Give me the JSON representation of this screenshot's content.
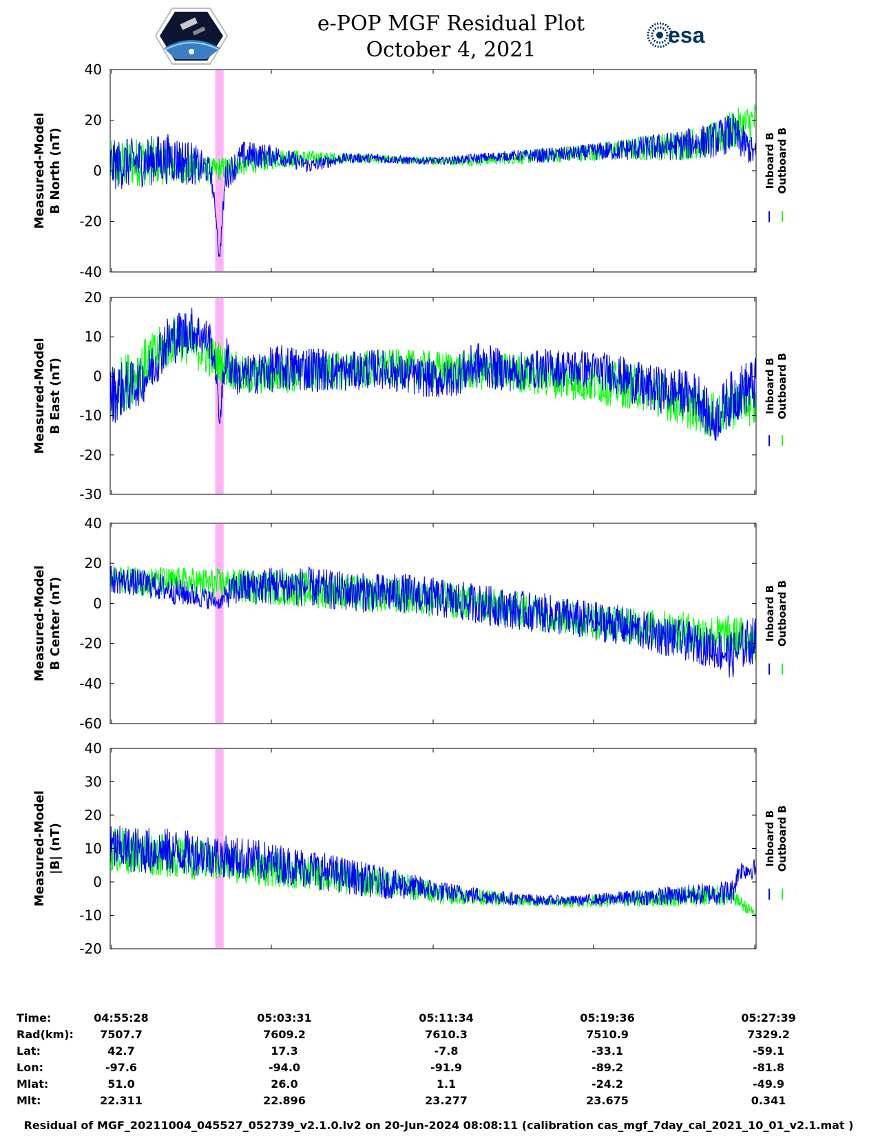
{
  "title": {
    "line1": "e-POP MGF Residual Plot",
    "line2": "October 4, 2021"
  },
  "logos": {
    "left_icon": "cassiope-mission-badge-icon",
    "right_icon": "esa-logo-icon",
    "right_text": "esa"
  },
  "colors": {
    "inboard": "#0000ff",
    "outboard": "#00ff00",
    "highlight": "#ffb3f5"
  },
  "legend": {
    "inboard": "Inboard B",
    "outboard": "Outboard B"
  },
  "chart_data": [
    {
      "type": "line",
      "ylabel_line1": "Measured-Model",
      "ylabel_line2": "B North (nT)",
      "ylim": [
        -40,
        40
      ],
      "yticks": [
        "40",
        "20",
        "0",
        "-20",
        "-40"
      ],
      "xlim_seconds": [
        0,
        1931
      ],
      "highlight_seconds": [
        314,
        339
      ],
      "series": [
        {
          "name": "Inboard B",
          "color": "#0000ff",
          "x": [
            0,
            60,
            120,
            180,
            240,
            300,
            318,
            326,
            345,
            400,
            500,
            600,
            700,
            800,
            900,
            1000,
            1100,
            1200,
            1300,
            1400,
            1500,
            1600,
            1700,
            1800,
            1860,
            1900,
            1931
          ],
          "y": [
            2,
            3,
            4,
            5,
            3,
            0,
            -20,
            -36,
            -2,
            6,
            6,
            2,
            5,
            5,
            4,
            4,
            5,
            6,
            6,
            7,
            8,
            9,
            10,
            12,
            15,
            10,
            6
          ],
          "spread": [
            10,
            10,
            10,
            10,
            9,
            5,
            2,
            2,
            6,
            6,
            4,
            3,
            2,
            2,
            1.5,
            1.5,
            2,
            2,
            3,
            3,
            4,
            5,
            6,
            7,
            8,
            7,
            5
          ]
        },
        {
          "name": "Outboard B",
          "color": "#00ff00",
          "x": [
            0,
            100,
            300,
            500,
            700,
            900,
            1100,
            1300,
            1500,
            1700,
            1800,
            1860,
            1900,
            1931
          ],
          "y": [
            2,
            4,
            0,
            5,
            5,
            4,
            4,
            6,
            8,
            10,
            12,
            16,
            18,
            20
          ],
          "spread": [
            10,
            10,
            5,
            4,
            2,
            1.5,
            2,
            3,
            4,
            6,
            7,
            8,
            8,
            8
          ]
        }
      ]
    },
    {
      "type": "line",
      "ylabel_line1": "Measured-Model",
      "ylabel_line2": "B East (nT)",
      "ylim": [
        -30,
        20
      ],
      "yticks": [
        "20",
        "10",
        "0",
        "-10",
        "-20",
        "-30"
      ],
      "xlim_seconds": [
        0,
        1931
      ],
      "highlight_seconds": [
        314,
        339
      ],
      "series": [
        {
          "name": "Inboard B",
          "color": "#0000ff",
          "x": [
            0,
            40,
            80,
            110,
            160,
            240,
            300,
            318,
            326,
            345,
            380,
            400,
            500,
            600,
            700,
            800,
            900,
            1000,
            1100,
            1200,
            1300,
            1400,
            1500,
            1600,
            1700,
            1760,
            1800,
            1850,
            1900,
            1931
          ],
          "y": [
            -5,
            -3,
            -2,
            0,
            8,
            12,
            9,
            0,
            -12,
            5,
            0,
            0,
            2,
            2,
            1,
            2,
            0,
            -1,
            3,
            1,
            2,
            2,
            1,
            -3,
            -4,
            -5,
            -12,
            -6,
            -3,
            -2
          ],
          "spread": [
            8,
            7,
            6,
            6,
            7,
            6,
            5,
            3,
            2,
            6,
            5,
            5,
            6,
            6,
            5,
            5,
            5,
            5,
            6,
            5,
            5,
            5,
            5,
            6,
            6,
            6,
            6,
            7,
            7,
            7
          ]
        },
        {
          "name": "Outboard B",
          "color": "#00ff00",
          "x": [
            0,
            200,
            400,
            800,
            1200,
            1600,
            1800,
            1900,
            1931
          ],
          "y": [
            -5,
            10,
            0,
            2,
            1,
            -3,
            -10,
            -6,
            -8
          ],
          "spread": [
            8,
            6,
            5,
            5,
            5,
            6,
            6,
            6,
            6
          ]
        }
      ]
    },
    {
      "type": "line",
      "ylabel_line1": "Measured-Model",
      "ylabel_line2": "B Center (nT)",
      "ylim": [
        -60,
        40
      ],
      "yticks": [
        "40",
        "20",
        "0",
        "-20",
        "-40",
        "-60"
      ],
      "xlim_seconds": [
        0,
        1931
      ],
      "highlight_seconds": [
        314,
        339
      ],
      "series": [
        {
          "name": "Inboard B",
          "color": "#0000ff",
          "x": [
            0,
            100,
            200,
            300,
            326,
            360,
            400,
            500,
            600,
            700,
            800,
            900,
            1000,
            1100,
            1200,
            1300,
            1400,
            1500,
            1600,
            1700,
            1800,
            1860,
            1900,
            1931
          ],
          "y": [
            12,
            10,
            6,
            2,
            0,
            6,
            8,
            9,
            8,
            6,
            5,
            5,
            2,
            0,
            -3,
            -5,
            -8,
            -10,
            -14,
            -18,
            -22,
            -26,
            -20,
            -18
          ],
          "spread": [
            7,
            7,
            7,
            5,
            3,
            8,
            9,
            10,
            10,
            10,
            10,
            10,
            10,
            10,
            10,
            10,
            10,
            10,
            10,
            10,
            10,
            12,
            12,
            12
          ]
        },
        {
          "name": "Outboard B",
          "color": "#00ff00",
          "x": [
            0,
            500,
            1000,
            1500,
            1931
          ],
          "y": [
            12,
            8,
            2,
            -10,
            -18
          ],
          "spread": [
            7,
            9,
            9,
            9,
            11
          ]
        }
      ]
    },
    {
      "type": "line",
      "ylabel_line1": "Measured-Model",
      "ylabel_line2": "|B| (nT)",
      "ylim": [
        -20,
        40
      ],
      "yticks": [
        "40",
        "30",
        "20",
        "10",
        "0",
        "-10",
        "-20"
      ],
      "xlim_seconds": [
        0,
        1931
      ],
      "highlight_seconds": [
        314,
        339
      ],
      "series": [
        {
          "name": "Inboard B",
          "color": "#0000ff",
          "x": [
            0,
            100,
            200,
            300,
            400,
            500,
            600,
            700,
            800,
            900,
            1000,
            1100,
            1200,
            1300,
            1400,
            1500,
            1600,
            1700,
            1800,
            1860,
            1880,
            1931
          ],
          "y": [
            10,
            9.5,
            9,
            8,
            7,
            5.5,
            4,
            2,
            0,
            -1.5,
            -3,
            -4,
            -5,
            -5.5,
            -5.5,
            -5,
            -4.5,
            -4,
            -3.5,
            -3,
            3.5,
            4
          ],
          "spread": [
            7,
            7,
            7,
            6.5,
            6.5,
            6,
            6,
            5.5,
            5,
            4,
            3,
            2.5,
            2,
            1.5,
            1.5,
            2,
            2.5,
            3,
            3.5,
            4,
            3,
            3
          ]
        },
        {
          "name": "Outboard B",
          "color": "#00ff00",
          "x": [
            0,
            900,
            1000,
            1100,
            1200,
            1300,
            1400,
            1500,
            1600,
            1700,
            1800,
            1870,
            1931
          ],
          "y": [
            10,
            -1.5,
            -3.5,
            -4.5,
            -5.5,
            -6,
            -6,
            -5.5,
            -5,
            -4.5,
            -4,
            -5,
            -10
          ],
          "spread": [
            7,
            4,
            3,
            2.5,
            2,
            1.5,
            1.5,
            2,
            2.5,
            3,
            3.5,
            2,
            2
          ]
        }
      ]
    }
  ],
  "ephemeris": {
    "row_labels": [
      "Time:",
      "Rad(km):",
      "Lat:",
      "Lon:",
      "Mlat:",
      "Mlt:"
    ],
    "columns": [
      {
        "time": "04:55:28",
        "rad": "7507.7",
        "lat": "42.7",
        "lon": "-97.6",
        "mlat": "51.0",
        "mlt": "22.311"
      },
      {
        "time": "05:03:31",
        "rad": "7609.2",
        "lat": "17.3",
        "lon": "-94.0",
        "mlat": "26.0",
        "mlt": "22.896"
      },
      {
        "time": "05:11:34",
        "rad": "7610.3",
        "lat": "-7.8",
        "lon": "-91.9",
        "mlat": "1.1",
        "mlt": "23.277"
      },
      {
        "time": "05:19:36",
        "rad": "7510.9",
        "lat": "-33.1",
        "lon": "-89.2",
        "mlat": "-24.2",
        "mlt": "23.675"
      },
      {
        "time": "05:27:39",
        "rad": "7329.2",
        "lat": "-59.1",
        "lon": "-81.8",
        "mlat": "-49.9",
        "mlt": "0.341"
      }
    ]
  },
  "footer": "Residual of MGF_20211004_045527_052739_v2.1.0.lv2 on 20-Jun-2024 08:08:11 (calibration cas_mgf_7day_cal_2021_10_01_v2.1.mat )"
}
